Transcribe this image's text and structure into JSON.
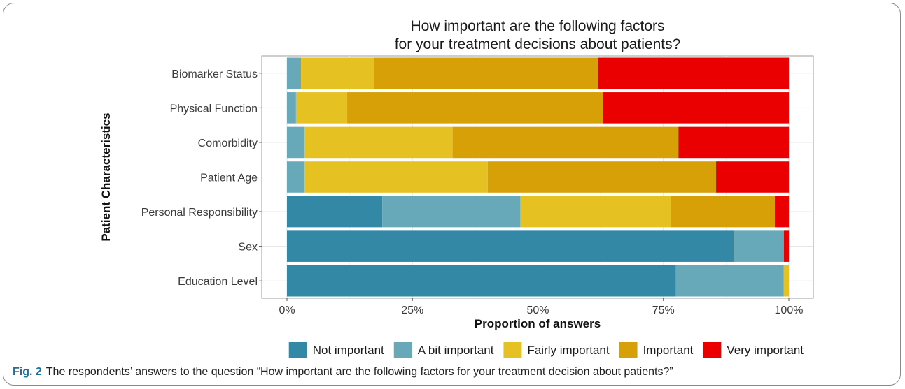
{
  "chart_data": {
    "type": "bar",
    "orientation": "horizontal",
    "stacked": true,
    "normalized": true,
    "title": "How important are the following factors\nfor your treatment decisions about patients?",
    "xlabel": "Proportion of answers",
    "ylabel": "Patient Characteristics",
    "xlim": [
      0,
      1
    ],
    "xticks": [
      0,
      0.25,
      0.5,
      0.75,
      1.0
    ],
    "xtick_labels": [
      "0%",
      "25%",
      "50%",
      "75%",
      "100%"
    ],
    "grid": true,
    "legend_position": "bottom",
    "categories": [
      "Biomarker Status",
      "Physical Function",
      "Comorbidity",
      "Patient Age",
      "Personal Responsibility",
      "Sex",
      "Education Level"
    ],
    "series": [
      {
        "name": "Not important",
        "color": "#3288a5",
        "values": [
          0.0,
          0.0,
          0.0,
          0.0,
          0.19,
          0.89,
          0.775
        ]
      },
      {
        "name": "A bit important",
        "color": "#67a9b8",
        "values": [
          0.028,
          0.018,
          0.035,
          0.035,
          0.275,
          0.1,
          0.215
        ]
      },
      {
        "name": "Fairly important",
        "color": "#e5c121",
        "values": [
          0.145,
          0.102,
          0.295,
          0.365,
          0.3,
          0.0,
          0.01
        ]
      },
      {
        "name": "Important",
        "color": "#d8a007",
        "values": [
          0.447,
          0.51,
          0.45,
          0.455,
          0.207,
          0.0,
          0.0
        ]
      },
      {
        "name": "Very important",
        "color": "#eb0000",
        "values": [
          0.38,
          0.37,
          0.22,
          0.145,
          0.028,
          0.01,
          0.0
        ]
      }
    ]
  },
  "caption": {
    "label": "Fig. 2",
    "text": "The respondents’ answers to the question “How important are the following factors for your treatment decision about patients?”"
  }
}
